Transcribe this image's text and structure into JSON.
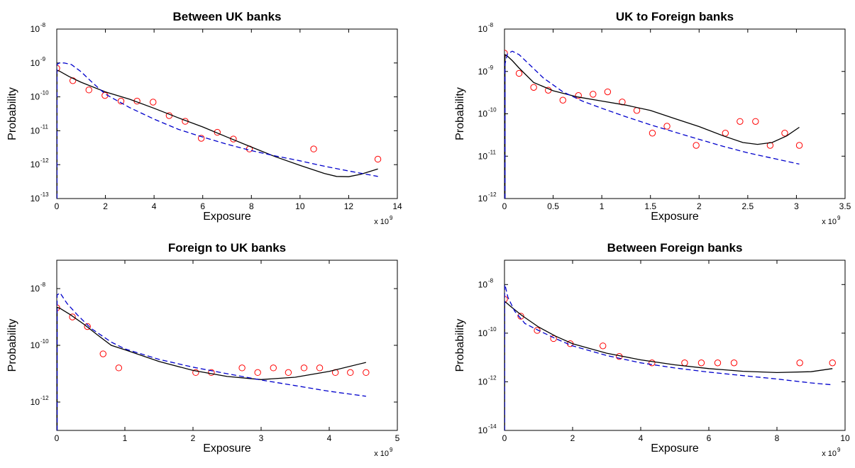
{
  "chart_data": [
    {
      "type": "line",
      "title": "Between UK banks",
      "xlabel": "Exposure",
      "ylabel": "Probability",
      "x_multiplier": "x 10",
      "x_multiplier_exp": "9",
      "xlim": [
        0,
        14
      ],
      "ylim_log10": [
        -13,
        -8
      ],
      "yscale": "log",
      "xticks": [
        0,
        2,
        4,
        6,
        8,
        10,
        12,
        14
      ],
      "yticks_exp": [
        -13,
        -12,
        -11,
        -10,
        -9,
        -8
      ],
      "grid": false,
      "legend": "none",
      "series": [
        {
          "style": "markers",
          "color": "#ff0000",
          "x": [
            0.0,
            0.66,
            1.32,
            1.98,
            2.64,
            3.3,
            3.96,
            4.62,
            5.28,
            5.94,
            6.6,
            7.26,
            7.92,
            10.56,
            13.2
          ],
          "y": [
            7e-10,
            3e-10,
            1.6e-10,
            1.1e-10,
            7.5e-11,
            7.5e-11,
            7e-11,
            2.8e-11,
            1.9e-11,
            6e-12,
            9e-12,
            5.7e-12,
            2.9e-12,
            2.9e-12,
            1.45e-12
          ]
        },
        {
          "style": "solid",
          "color": "#000000",
          "x": [
            0.01,
            0.1,
            0.5,
            1.0,
            2.0,
            3.0,
            4.0,
            5.0,
            6.0,
            7.0,
            8.0,
            9.0,
            10.0,
            11.0,
            11.5,
            12.0,
            12.5,
            13.2
          ],
          "y": [
            6e-10,
            5.8e-10,
            4e-10,
            2.7e-10,
            1.4e-10,
            8.5e-11,
            4.6e-11,
            2.4e-11,
            1.3e-11,
            6.5e-12,
            3.3e-12,
            1.7e-12,
            9.5e-13,
            5.5e-13,
            4.5e-13,
            4.4e-13,
            5.2e-13,
            7.5e-13
          ]
        },
        {
          "style": "dashed",
          "color": "#0000cc",
          "x": [
            0.01,
            0.1,
            0.3,
            0.6,
            1.0,
            1.5,
            2.0,
            3.0,
            4.0,
            5.0,
            6.0,
            7.0,
            8.0,
            9.0,
            10.0,
            11.0,
            12.0,
            13.2
          ],
          "y": [
            9e-10,
            1e-09,
            1e-09,
            9e-10,
            5.5e-10,
            2.5e-10,
            1.2e-10,
            4.8e-11,
            2.2e-11,
            1.1e-11,
            6.5e-12,
            4e-12,
            2.6e-12,
            1.8e-12,
            1.3e-12,
            9e-13,
            6.5e-13,
            4.5e-13
          ]
        }
      ]
    },
    {
      "type": "line",
      "title": "UK to Foreign banks",
      "xlabel": "Exposure",
      "ylabel": "Probability",
      "x_multiplier": "x 10",
      "x_multiplier_exp": "9",
      "xlim": [
        0,
        3.5
      ],
      "ylim_log10": [
        -12,
        -8
      ],
      "yscale": "log",
      "xticks": [
        0,
        0.5,
        1,
        1.5,
        2,
        2.5,
        3,
        3.5
      ],
      "yticks_exp": [
        -12,
        -11,
        -10,
        -9,
        -8
      ],
      "grid": false,
      "legend": "none",
      "series": [
        {
          "style": "markers",
          "color": "#ff0000",
          "x": [
            0.0,
            0.15,
            0.3,
            0.45,
            0.6,
            0.76,
            0.91,
            1.06,
            1.21,
            1.36,
            1.52,
            1.67,
            1.97,
            2.27,
            2.42,
            2.58,
            2.73,
            2.88,
            3.03
          ],
          "y": [
            2.7e-09,
            9e-10,
            4.2e-10,
            3.6e-10,
            2.1e-10,
            2.7e-10,
            2.9e-10,
            3.3e-10,
            1.9e-10,
            1.2e-10,
            3.5e-11,
            5.1e-11,
            1.8e-11,
            3.5e-11,
            6.6e-11,
            6.6e-11,
            1.8e-11,
            3.5e-11,
            1.8e-11
          ]
        },
        {
          "style": "solid",
          "color": "#000000",
          "x": [
            0.005,
            0.03,
            0.08,
            0.15,
            0.3,
            0.5,
            0.75,
            1.0,
            1.25,
            1.5,
            1.75,
            2.0,
            2.25,
            2.45,
            2.6,
            2.75,
            2.9,
            3.03
          ],
          "y": [
            2.5e-09,
            2.3e-09,
            1.8e-09,
            1.2e-09,
            5.5e-10,
            3.5e-10,
            2.5e-10,
            2e-10,
            1.6e-10,
            1.2e-10,
            7.7e-11,
            5e-11,
            3e-11,
            2.1e-11,
            1.9e-11,
            2.1e-11,
            3e-11,
            4.8e-11
          ]
        },
        {
          "style": "dashed",
          "color": "#0000cc",
          "x": [
            0.005,
            0.03,
            0.08,
            0.15,
            0.25,
            0.4,
            0.6,
            0.8,
            1.0,
            1.25,
            1.5,
            1.75,
            2.0,
            2.25,
            2.5,
            2.75,
            3.03
          ],
          "y": [
            1.5e-09,
            2.6e-09,
            3e-09,
            2.5e-09,
            1.5e-09,
            7e-10,
            3.3e-10,
            2e-10,
            1.35e-10,
            8.5e-11,
            5.5e-11,
            3.7e-11,
            2.5e-11,
            1.7e-11,
            1.2e-11,
            9e-12,
            6.5e-12
          ]
        }
      ]
    },
    {
      "type": "line",
      "title": "Foreign to UK banks",
      "xlabel": "Exposure",
      "ylabel": "Probability",
      "x_multiplier": "x 10",
      "x_multiplier_exp": "9",
      "xlim": [
        0,
        5
      ],
      "ylim_log10": [
        -13,
        -7
      ],
      "yscale": "log",
      "xticks": [
        0,
        1,
        2,
        3,
        4,
        5
      ],
      "yticks_exp": [
        -12,
        -10,
        -8
      ],
      "grid": false,
      "legend": "none",
      "series": [
        {
          "style": "markers",
          "color": "#ff0000",
          "x": [
            0.0,
            0.23,
            0.45,
            0.68,
            0.91,
            2.04,
            2.27,
            2.72,
            2.95,
            3.18,
            3.4,
            3.63,
            3.86,
            4.09,
            4.31,
            4.54
          ],
          "y": [
            2.1e-09,
            1e-09,
            4.6e-10,
            5e-11,
            1.6e-11,
            1.1e-11,
            1.1e-11,
            1.6e-11,
            1.1e-11,
            1.6e-11,
            1.1e-11,
            1.6e-11,
            1.6e-11,
            1.1e-11,
            1.1e-11,
            1.1e-11
          ]
        },
        {
          "style": "solid",
          "color": "#000000",
          "x": [
            0.005,
            0.05,
            0.2,
            0.4,
            0.6,
            0.8,
            1.0,
            1.5,
            2.0,
            2.5,
            3.0,
            3.5,
            4.0,
            4.54
          ],
          "y": [
            2.2e-09,
            2e-09,
            1.2e-09,
            5.5e-10,
            2.3e-10,
            1e-10,
            7e-11,
            2.7e-11,
            1.3e-11,
            8e-12,
            6.2e-12,
            7.5e-12,
            1.2e-11,
            2.5e-11
          ]
        },
        {
          "style": "dashed",
          "color": "#0000cc",
          "x": [
            0.005,
            0.05,
            0.15,
            0.3,
            0.5,
            0.8,
            1.0,
            1.5,
            2.0,
            2.5,
            3.0,
            3.5,
            4.0,
            4.54
          ],
          "y": [
            6e-09,
            7e-09,
            3e-09,
            1.2e-09,
            4e-10,
            1.3e-10,
            7.5e-11,
            3.2e-11,
            1.7e-11,
            1e-11,
            6e-12,
            3.8e-12,
            2.4e-12,
            1.6e-12
          ]
        }
      ]
    },
    {
      "type": "line",
      "title": "Between Foreign banks",
      "xlabel": "Exposure",
      "ylabel": "Probability",
      "x_multiplier": "x 10",
      "x_multiplier_exp": "9",
      "xlim": [
        0,
        10
      ],
      "ylim_log10": [
        -14,
        -7
      ],
      "yscale": "log",
      "xticks": [
        0,
        2,
        4,
        6,
        8,
        10
      ],
      "yticks_exp": [
        -14,
        -12,
        -10,
        -8
      ],
      "grid": false,
      "legend": "none",
      "series": [
        {
          "style": "markers",
          "color": "#ff0000",
          "x": [
            0.0,
            0.48,
            0.96,
            1.44,
            1.93,
            2.89,
            3.37,
            4.33,
            5.29,
            5.78,
            6.26,
            6.74,
            8.67,
            9.63
          ],
          "y": [
            2.5e-09,
            5e-10,
            1.3e-10,
            6e-11,
            3.7e-11,
            3e-11,
            1.1e-11,
            6e-12,
            6e-12,
            6e-12,
            6e-12,
            6e-12,
            6e-12,
            6e-12
          ]
        },
        {
          "style": "solid",
          "color": "#000000",
          "x": [
            0.005,
            0.05,
            0.2,
            0.5,
            1.0,
            1.5,
            2.0,
            3.0,
            4.0,
            5.0,
            6.0,
            7.0,
            8.0,
            9.0,
            9.63
          ],
          "y": [
            2e-09,
            1.8e-09,
            1.2e-09,
            5.5e-10,
            1.8e-10,
            7.5e-11,
            3.7e-11,
            1.5e-11,
            8e-12,
            5e-12,
            3.5e-12,
            2.7e-12,
            2.4e-12,
            2.6e-12,
            3.5e-12
          ]
        },
        {
          "style": "dashed",
          "color": "#0000cc",
          "x": [
            0.005,
            0.03,
            0.1,
            0.3,
            0.6,
            1.0,
            1.5,
            2.0,
            3.0,
            4.0,
            5.0,
            6.0,
            7.0,
            8.0,
            9.0,
            9.63
          ],
          "y": [
            1e-08,
            8e-09,
            3e-09,
            8e-10,
            2.5e-10,
            1.3e-10,
            6e-11,
            3e-11,
            1.2e-11,
            6e-12,
            3.7e-12,
            2.5e-12,
            1.8e-12,
            1.3e-12,
            9e-13,
            7.5e-13
          ]
        }
      ]
    }
  ]
}
